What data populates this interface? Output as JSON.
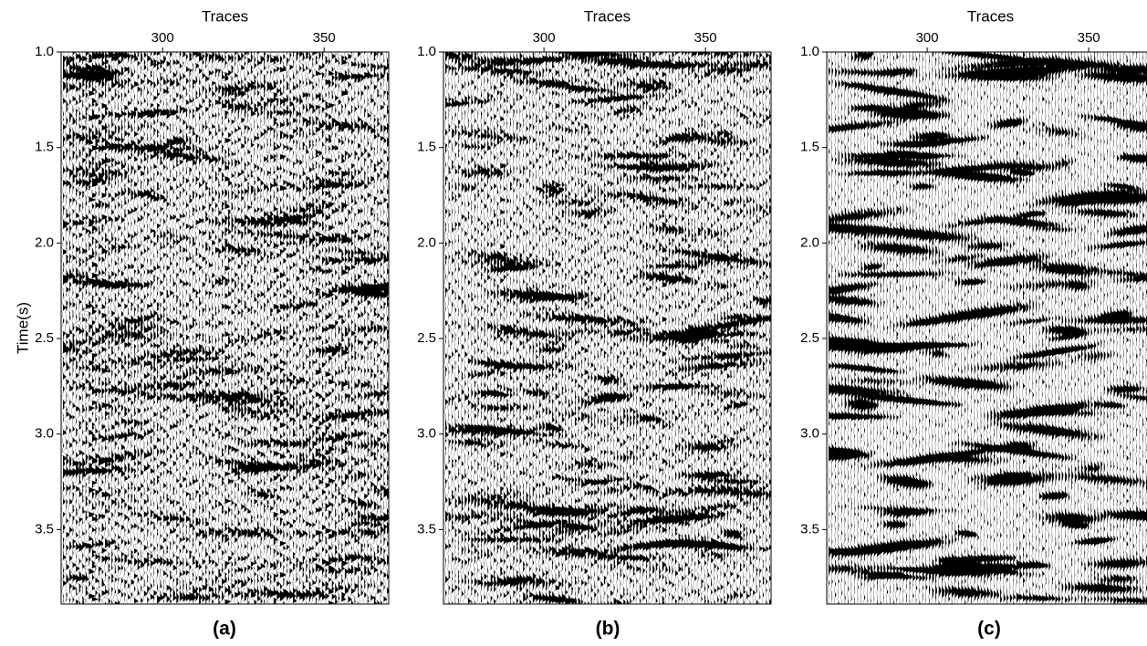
{
  "chart_data": [
    {
      "type": "seismic",
      "label": "(a)",
      "xlabel": "Traces",
      "ylabel": "Time(s)",
      "xlim": [
        268.6,
        370
      ],
      "xticks": [
        300,
        350
      ],
      "ylim": [
        1.0,
        3.89
      ],
      "yticks": [
        {
          "value": 1.0,
          "label": "1.0"
        },
        1.5,
        {
          "value": 2.0,
          "label": "2.0"
        },
        2.5,
        {
          "value": 3.0,
          "label": "3.0"
        },
        3.5
      ]
    },
    {
      "type": "seismic",
      "label": "(b)",
      "xlabel": "Traces",
      "xlim": [
        268.9,
        370.3
      ],
      "xticks": [
        300,
        350
      ],
      "ylim": [
        1.0,
        3.89
      ],
      "yticks": [
        {
          "value": 1.0,
          "label": "1.0"
        },
        1.5,
        {
          "value": 2.0,
          "label": "2.0"
        },
        2.5,
        {
          "value": 3.0,
          "label": "3.0"
        },
        3.5
      ]
    },
    {
      "type": "seismic",
      "label": "(c)",
      "xlabel": "Traces",
      "xlim": [
        268.9,
        370.3
      ],
      "xticks": [
        300,
        350
      ],
      "ylim": [
        1.0,
        3.89
      ],
      "yticks": [
        {
          "value": 1.0,
          "label": "1.0"
        },
        1.5,
        {
          "value": 2.0,
          "label": "2.0"
        },
        2.5,
        {
          "value": 3.0,
          "label": "3.0"
        },
        3.5
      ]
    }
  ]
}
